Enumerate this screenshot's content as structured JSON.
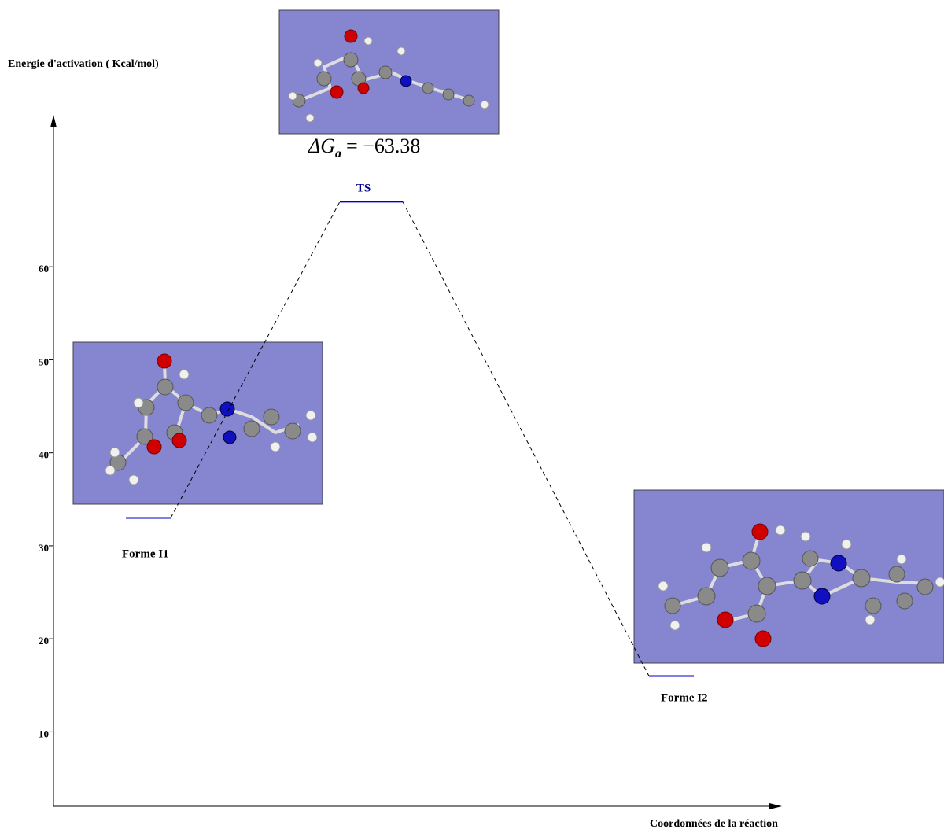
{
  "chart_data": {
    "type": "energy-profile",
    "y_label": "Energie d'activation ( Kcal/mol)",
    "x_label": "Coordonnées de la réaction",
    "categories": [
      "Forme I1",
      "TS",
      "Forme I2"
    ],
    "values": [
      33,
      67,
      16
    ],
    "color": "#0000cc",
    "ylim": [
      2,
      76
    ],
    "yticks": [
      10,
      20,
      30,
      40,
      50,
      60
    ],
    "annotation": {
      "symbol": "ΔG",
      "subscript": "a",
      "text": "= −63.38"
    }
  }
}
